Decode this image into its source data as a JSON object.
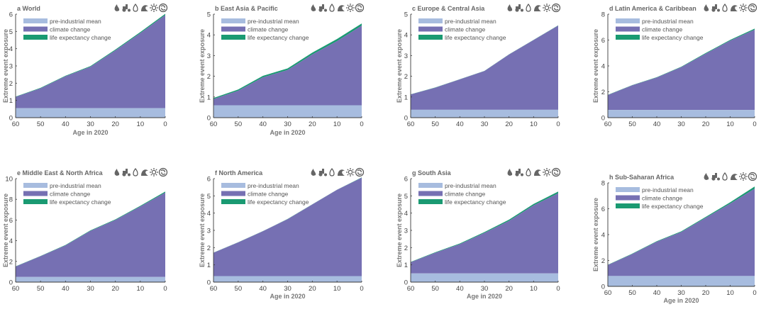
{
  "figure": {
    "legend_labels": [
      "pre-industrial mean",
      "climate change",
      "life expectancy change"
    ],
    "colors": {
      "pre_industrial": "#a7bcdf",
      "climate_change": "#7670b3",
      "life_expectancy": "#1a9a72",
      "axis": "#3a3a3a",
      "label": "#777777"
    },
    "hazard_icons": [
      "wildfire-icon",
      "crop-failure-icon",
      "drought-icon",
      "flood-icon",
      "heatwave-icon",
      "tropical-cyclone-icon"
    ]
  },
  "chart_data": [
    {
      "type": "area",
      "panel": "a",
      "title": "a World",
      "xlabel": "Age in 2020",
      "ylabel": "Extreme event exposure",
      "xlim": [
        60,
        0
      ],
      "ylim": [
        0,
        6
      ],
      "xticks": [
        60,
        50,
        40,
        30,
        20,
        10,
        0
      ],
      "yticks": [
        0,
        1,
        2,
        3,
        4,
        5,
        6
      ],
      "x": [
        60,
        50,
        40,
        30,
        20,
        10,
        0
      ],
      "series": [
        {
          "name": "pre-industrial mean",
          "values": [
            0.55,
            0.55,
            0.55,
            0.55,
            0.55,
            0.55,
            0.55
          ]
        },
        {
          "name": "climate change",
          "values": [
            1.2,
            1.7,
            2.4,
            2.95,
            3.9,
            4.9,
            5.95
          ]
        },
        {
          "name": "life expectancy change",
          "values": [
            1.22,
            1.73,
            2.43,
            2.99,
            3.95,
            4.96,
            6.02
          ]
        }
      ]
    },
    {
      "type": "area",
      "panel": "b",
      "title": "b East Asia & Pacific",
      "xlabel": "Age in 2020",
      "ylabel": "Extreme event exposure",
      "xlim": [
        60,
        0
      ],
      "ylim": [
        0,
        5
      ],
      "xticks": [
        60,
        50,
        40,
        30,
        20,
        10,
        0
      ],
      "yticks": [
        0,
        1,
        2,
        3,
        4,
        5
      ],
      "x": [
        60,
        50,
        40,
        30,
        20,
        10,
        0
      ],
      "series": [
        {
          "name": "pre-industrial mean",
          "values": [
            0.6,
            0.6,
            0.6,
            0.6,
            0.6,
            0.6,
            0.6
          ]
        },
        {
          "name": "climate change",
          "values": [
            0.9,
            1.3,
            1.95,
            2.3,
            3.05,
            3.7,
            4.45
          ]
        },
        {
          "name": "life expectancy change",
          "values": [
            0.95,
            1.36,
            2.02,
            2.38,
            3.14,
            3.8,
            4.55
          ]
        }
      ]
    },
    {
      "type": "area",
      "panel": "c",
      "title": "c Europe & Central Asia",
      "xlabel": "",
      "ylabel": "Extreme event exposure",
      "xlim": [
        60,
        0
      ],
      "ylim": [
        0,
        5
      ],
      "xticks": [
        60,
        50,
        40,
        30,
        20,
        10,
        0
      ],
      "yticks": [
        0,
        1,
        2,
        3,
        4,
        5
      ],
      "x": [
        60,
        50,
        40,
        30,
        20,
        10,
        0
      ],
      "series": [
        {
          "name": "pre-industrial mean",
          "values": [
            0.38,
            0.38,
            0.38,
            0.38,
            0.38,
            0.38,
            0.38
          ]
        },
        {
          "name": "climate change",
          "values": [
            1.12,
            1.45,
            1.85,
            2.25,
            3.05,
            3.75,
            4.45
          ]
        },
        {
          "name": "life expectancy change",
          "values": [
            1.13,
            1.46,
            1.86,
            2.26,
            3.06,
            3.76,
            4.46
          ]
        }
      ]
    },
    {
      "type": "area",
      "panel": "d",
      "title": "d Latin America & Caribbean",
      "xlabel": "",
      "ylabel": "Extreme event exposure",
      "xlim": [
        60,
        0
      ],
      "ylim": [
        0,
        8
      ],
      "xticks": [
        60,
        50,
        40,
        30,
        20,
        10,
        0
      ],
      "yticks": [
        0,
        2,
        4,
        6,
        8
      ],
      "x": [
        60,
        50,
        40,
        30,
        20,
        10,
        0
      ],
      "series": [
        {
          "name": "pre-industrial mean",
          "values": [
            0.6,
            0.6,
            0.6,
            0.6,
            0.6,
            0.6,
            0.6
          ]
        },
        {
          "name": "climate change",
          "values": [
            1.75,
            2.5,
            3.1,
            3.9,
            4.95,
            5.95,
            6.8
          ]
        },
        {
          "name": "life expectancy change",
          "values": [
            1.77,
            2.52,
            3.13,
            3.94,
            5.0,
            6.01,
            6.88
          ]
        }
      ]
    },
    {
      "type": "area",
      "panel": "e",
      "title": "e Middle East & North Africa",
      "xlabel": "",
      "ylabel": "Extreme event exposure",
      "xlim": [
        60,
        0
      ],
      "ylim": [
        0,
        10
      ],
      "xticks": [
        60,
        50,
        40,
        30,
        20,
        10,
        0
      ],
      "yticks": [
        0,
        2,
        4,
        6,
        8,
        10
      ],
      "x": [
        60,
        50,
        40,
        30,
        20,
        10,
        0
      ],
      "series": [
        {
          "name": "pre-industrial mean",
          "values": [
            0.5,
            0.5,
            0.5,
            0.5,
            0.5,
            0.5,
            0.5
          ]
        },
        {
          "name": "climate change",
          "values": [
            1.5,
            2.5,
            3.55,
            4.95,
            6.0,
            7.3,
            8.65
          ]
        },
        {
          "name": "life expectancy change",
          "values": [
            1.52,
            2.53,
            3.59,
            5.0,
            6.06,
            7.37,
            8.75
          ]
        }
      ]
    },
    {
      "type": "area",
      "panel": "f",
      "title": "f North America",
      "xlabel": "Age in 2020",
      "ylabel": "Extreme event exposure",
      "xlim": [
        60,
        0
      ],
      "ylim": [
        0,
        6
      ],
      "xticks": [
        60,
        50,
        40,
        30,
        20,
        10,
        0
      ],
      "yticks": [
        0,
        1,
        2,
        3,
        4,
        5,
        6
      ],
      "x": [
        60,
        50,
        40,
        30,
        20,
        10,
        0
      ],
      "series": [
        {
          "name": "pre-industrial mean",
          "values": [
            0.35,
            0.35,
            0.35,
            0.35,
            0.35,
            0.35,
            0.35
          ]
        },
        {
          "name": "climate change",
          "values": [
            1.7,
            2.3,
            2.95,
            3.65,
            4.5,
            5.35,
            6.05
          ]
        },
        {
          "name": "life expectancy change",
          "values": [
            1.71,
            2.31,
            2.96,
            3.66,
            4.51,
            5.36,
            6.07
          ]
        }
      ]
    },
    {
      "type": "area",
      "panel": "g",
      "title": "g South Asia",
      "xlabel": "Age in 2020",
      "ylabel": "Extreme event exposure",
      "xlim": [
        60,
        0
      ],
      "ylim": [
        0,
        6
      ],
      "xticks": [
        60,
        50,
        40,
        30,
        20,
        10,
        0
      ],
      "yticks": [
        0,
        1,
        2,
        3,
        4,
        5,
        6
      ],
      "x": [
        60,
        50,
        40,
        30,
        20,
        10,
        0
      ],
      "series": [
        {
          "name": "pre-industrial mean",
          "values": [
            0.5,
            0.5,
            0.5,
            0.5,
            0.5,
            0.5,
            0.5
          ]
        },
        {
          "name": "climate change",
          "values": [
            1.15,
            1.7,
            2.2,
            2.85,
            3.55,
            4.45,
            5.15
          ]
        },
        {
          "name": "life expectancy change",
          "values": [
            1.17,
            1.73,
            2.24,
            2.9,
            3.62,
            4.53,
            5.25
          ]
        }
      ]
    },
    {
      "type": "area",
      "panel": "h",
      "title": "h Sub-Saharan Africa",
      "xlabel": "Age in 2020",
      "ylabel": "Extreme event exposure",
      "xlim": [
        60,
        0
      ],
      "ylim": [
        0,
        8
      ],
      "xticks": [
        60,
        50,
        40,
        30,
        20,
        10,
        0
      ],
      "yticks": [
        0,
        2,
        4,
        6,
        8
      ],
      "x": [
        60,
        50,
        40,
        30,
        20,
        10,
        0
      ],
      "series": [
        {
          "name": "pre-industrial mean",
          "values": [
            0.8,
            0.8,
            0.8,
            0.8,
            0.8,
            0.8,
            0.8
          ]
        },
        {
          "name": "climate change",
          "values": [
            1.65,
            2.5,
            3.45,
            4.2,
            5.3,
            6.4,
            7.55
          ]
        },
        {
          "name": "life expectancy change",
          "values": [
            1.67,
            2.53,
            3.49,
            4.25,
            5.37,
            6.5,
            7.72
          ]
        }
      ]
    }
  ]
}
